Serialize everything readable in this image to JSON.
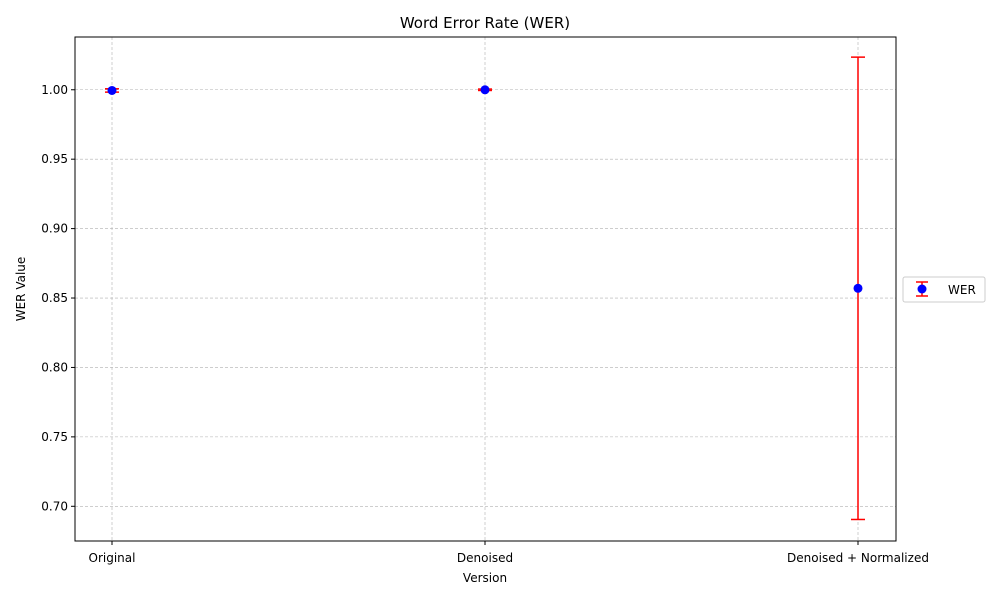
{
  "chart_data": {
    "type": "scatter",
    "title": "Word Error Rate (WER)",
    "xlabel": "Version",
    "ylabel": "WER Value",
    "categories": [
      "Original",
      "Denoised",
      "Denoised + Normalized"
    ],
    "series": [
      {
        "name": "WER",
        "values": [
          0.9995,
          1.0,
          0.857
        ],
        "errors": [
          0.0012,
          0.0005,
          0.1665
        ]
      }
    ],
    "ylim": [
      0.675,
      1.038
    ],
    "yticks": [
      0.7,
      0.75,
      0.8,
      0.85,
      0.9,
      0.95,
      1.0
    ],
    "ytick_labels": [
      "0.70",
      "0.75",
      "0.80",
      "0.85",
      "0.90",
      "0.95",
      "1.00"
    ],
    "grid": true,
    "legend_placement": "right-outside",
    "colors": {
      "marker": "#0000ff",
      "error_bar": "#ff0000",
      "grid": "#b0b0b0"
    }
  }
}
